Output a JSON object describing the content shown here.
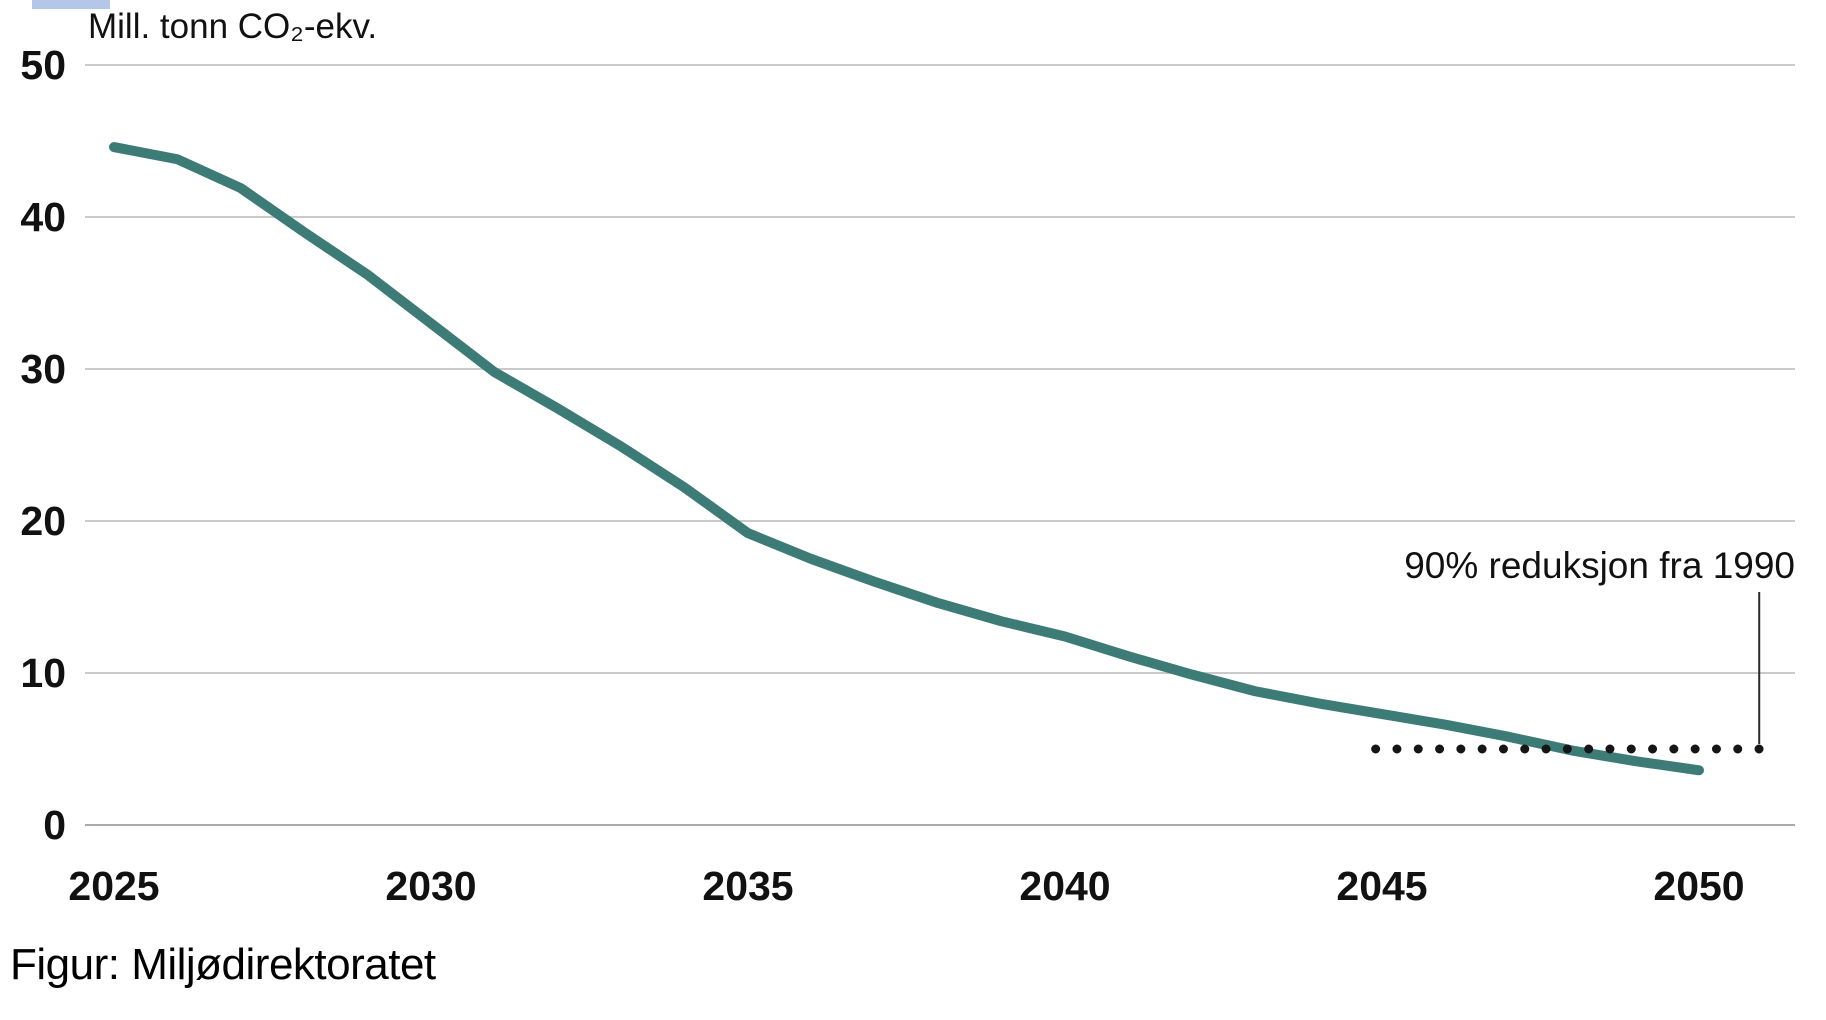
{
  "figure": {
    "caption": "Figur: Miljødirektoratet"
  },
  "chart_data": {
    "type": "line",
    "title": "",
    "ylabel": "Mill. tonn CO₂-ekv.",
    "xlabel": "",
    "x": [
      2025,
      2026,
      2027,
      2028,
      2029,
      2030,
      2031,
      2032,
      2033,
      2034,
      2035,
      2036,
      2037,
      2038,
      2039,
      2040,
      2041,
      2042,
      2043,
      2044,
      2045,
      2046,
      2047,
      2048,
      2049,
      2050
    ],
    "series": [
      {
        "values": [
          44.6,
          43.8,
          41.9,
          39.0,
          36.2,
          33.0,
          29.8,
          27.4,
          24.9,
          22.2,
          19.2,
          17.5,
          16.0,
          14.6,
          13.4,
          12.4,
          11.1,
          9.9,
          8.8,
          8.0,
          7.3,
          6.6,
          5.8,
          4.9,
          4.2,
          3.6
        ],
        "color": "#3d7c76"
      }
    ],
    "xticks": [
      2025,
      2030,
      2035,
      2040,
      2045,
      2050
    ],
    "yticks": [
      0,
      10,
      20,
      30,
      40,
      50
    ],
    "ylim": [
      0,
      50
    ],
    "xlim": [
      2025,
      2051.8
    ],
    "grid": "horizontal",
    "legend": "none",
    "annotation": {
      "label": "90% reduksjon fra 1990",
      "target_value": 5,
      "line_style": "dotted",
      "line_x_start": 2044.9,
      "line_x_end": 2050.95,
      "color": "#161616"
    },
    "colors": {
      "gridline": "#cacaca",
      "baseline": "#a9a9ad",
      "tick_text": "#111111",
      "pointer_line": "#2a2a2a"
    }
  }
}
